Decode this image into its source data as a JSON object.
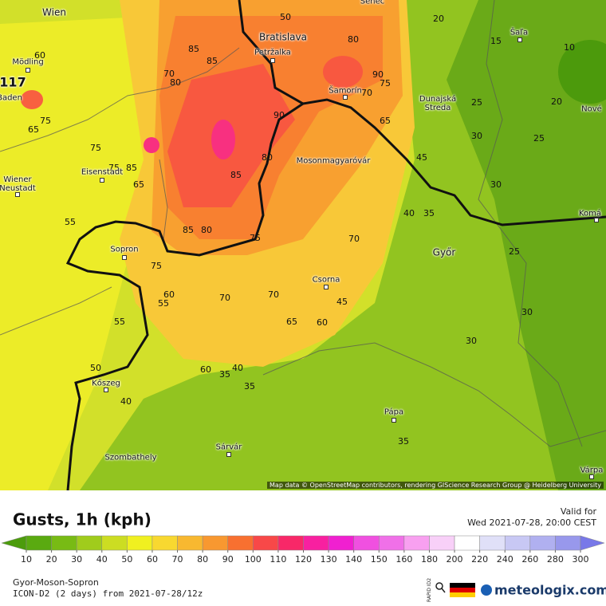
{
  "map": {
    "cities": [
      "Wien",
      "Bratislava",
      "Petržalka",
      "Senec",
      "Šaľa",
      "Mödling",
      "Baden",
      "Šamorín",
      "Dunajská Streda",
      "Nové",
      "Eisenstadt",
      "Mosonmagyaróvár",
      "Wiener Neustadt",
      "Komá",
      "Sopron",
      "Győr",
      "Csorna",
      "Kőszeg",
      "Pápa",
      "Szombathely",
      "Sárvár",
      "Várpa"
    ],
    "marker": "117",
    "contour_labels": [
      60,
      85,
      85,
      50,
      80,
      20,
      15,
      10,
      70,
      80,
      90,
      75,
      70,
      75,
      65,
      90,
      65,
      25,
      20,
      30,
      25,
      75,
      75,
      85,
      80,
      85,
      45,
      65,
      30,
      40,
      35,
      55,
      85,
      80,
      75,
      70,
      25,
      75,
      60,
      55,
      70,
      70,
      45,
      30,
      55,
      65,
      60,
      30,
      50,
      60,
      35,
      40,
      35,
      40,
      35
    ],
    "attribution": "Map data © OpenStreetMap contributors, rendering GIScience Research Group @ Heidelberg University"
  },
  "legend": {
    "title": "Gusts, 1h (kph)",
    "valid_label": "Valid for",
    "valid_time": "Wed 2021-07-28, 20:00 CEST",
    "ticks": [
      10,
      20,
      30,
      40,
      50,
      60,
      70,
      80,
      90,
      100,
      110,
      120,
      130,
      140,
      150,
      160,
      180,
      200,
      220,
      240,
      260,
      280,
      300
    ],
    "colors": [
      "#4c9c0c",
      "#5aaa10",
      "#78bb14",
      "#a0cc1c",
      "#ccdd22",
      "#f0f020",
      "#f8d830",
      "#f8b830",
      "#f89830",
      "#f87030",
      "#f84848",
      "#f82868",
      "#f820a0",
      "#f020d0",
      "#f050e0",
      "#f070e8",
      "#f8a0f0",
      "#f8d0f8",
      "#ffffff",
      "#e0e0f8",
      "#c8c8f4",
      "#b0b0f0",
      "#9898ec",
      "#7878e8"
    ]
  },
  "footer": {
    "region": "Gyor-Moson-Sopron",
    "model": "ICON-D2 (2 days) from 2021-07-28/12z",
    "badge": "RAPID ID2",
    "brand": "meteologix.com"
  }
}
